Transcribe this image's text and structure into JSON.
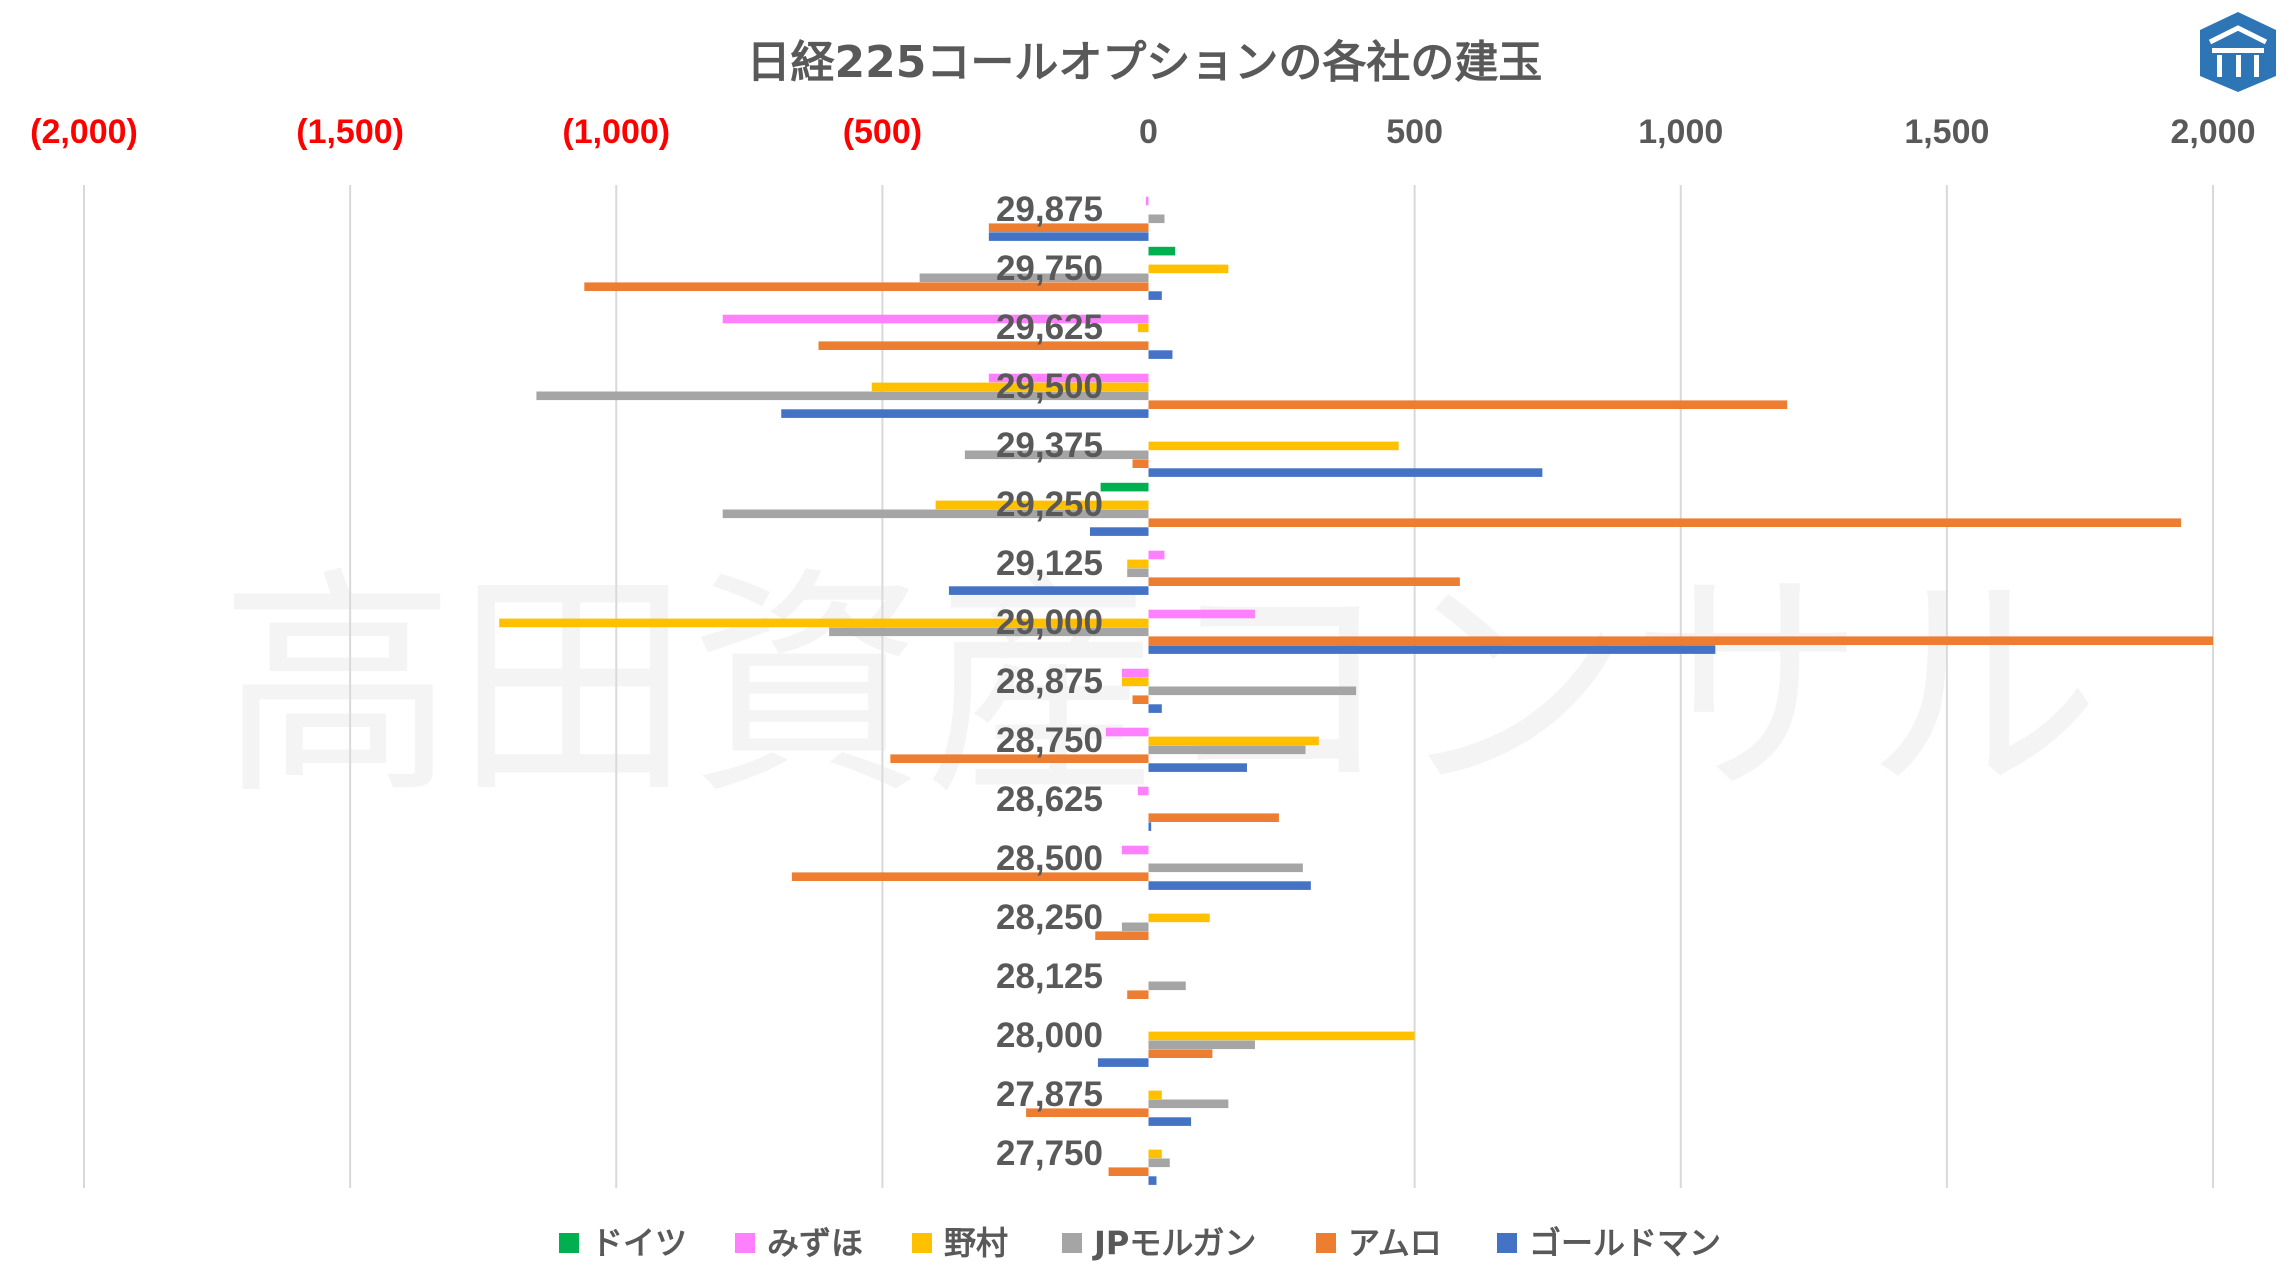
{
  "logo": {
    "icon": "shrine-roof-logo-icon",
    "color": "#2e75b6"
  },
  "watermark": "高田資産コンサル",
  "colors": {
    "ドイツ": "#00b050",
    "みずほ": "#ff80ff",
    "野村": "#ffc000",
    "JPモルガン": "#a5a5a5",
    "アムロ": "#ed7d31",
    "ゴールドマン": "#4472c4",
    "negative_tick": "#ff0000",
    "positive_tick": "#595959"
  },
  "chart_data": {
    "type": "bar",
    "orientation": "horizontal",
    "title": "日経225コールオプションの各社の建玉",
    "xlim": [
      -2000,
      2000
    ],
    "x_ticks": [
      -2000,
      -1500,
      -1000,
      -500,
      0,
      500,
      1000,
      1500,
      2000
    ],
    "x_tick_labels": [
      "(2,000)",
      "(1,500)",
      "(1,000)",
      "(500)",
      "0",
      "500",
      "1,000",
      "1,500",
      "2,000"
    ],
    "x_axis_position": "top",
    "grid": "vertical",
    "legend_position": "bottom",
    "categories": [
      "29,875",
      "29,750",
      "29,625",
      "29,500",
      "29,375",
      "29,250",
      "29,125",
      "29,000",
      "28,875",
      "28,750",
      "28,625",
      "28,500",
      "28,250",
      "28,125",
      "28,000",
      "27,875",
      "27,750"
    ],
    "series": [
      {
        "name": "ドイツ",
        "values": [
          0,
          50,
          0,
          0,
          0,
          -90,
          0,
          0,
          0,
          0,
          0,
          0,
          0,
          0,
          0,
          0,
          0
        ]
      },
      {
        "name": "みずほ",
        "values": [
          -5,
          0,
          -800,
          -300,
          0,
          0,
          30,
          200,
          -50,
          -80,
          -20,
          -50,
          0,
          0,
          0,
          0,
          0
        ]
      },
      {
        "name": "野村",
        "values": [
          0,
          150,
          -20,
          -520,
          470,
          -400,
          -40,
          -1220,
          -50,
          320,
          0,
          0,
          115,
          0,
          500,
          25,
          25
        ]
      },
      {
        "name": "JPモルガン",
        "values": [
          30,
          -430,
          0,
          -1150,
          -345,
          -800,
          -40,
          -600,
          390,
          295,
          0,
          290,
          -50,
          70,
          200,
          150,
          40
        ]
      },
      {
        "name": "アムロ",
        "values": [
          -300,
          -1060,
          -620,
          1200,
          -30,
          1940,
          585,
          2000,
          -30,
          -485,
          245,
          -670,
          -100,
          -40,
          120,
          -230,
          -75
        ]
      },
      {
        "name": "ゴールドマン",
        "values": [
          -300,
          25,
          45,
          -690,
          740,
          -110,
          -375,
          1065,
          25,
          185,
          5,
          305,
          0,
          0,
          -95,
          80,
          15
        ]
      }
    ]
  }
}
